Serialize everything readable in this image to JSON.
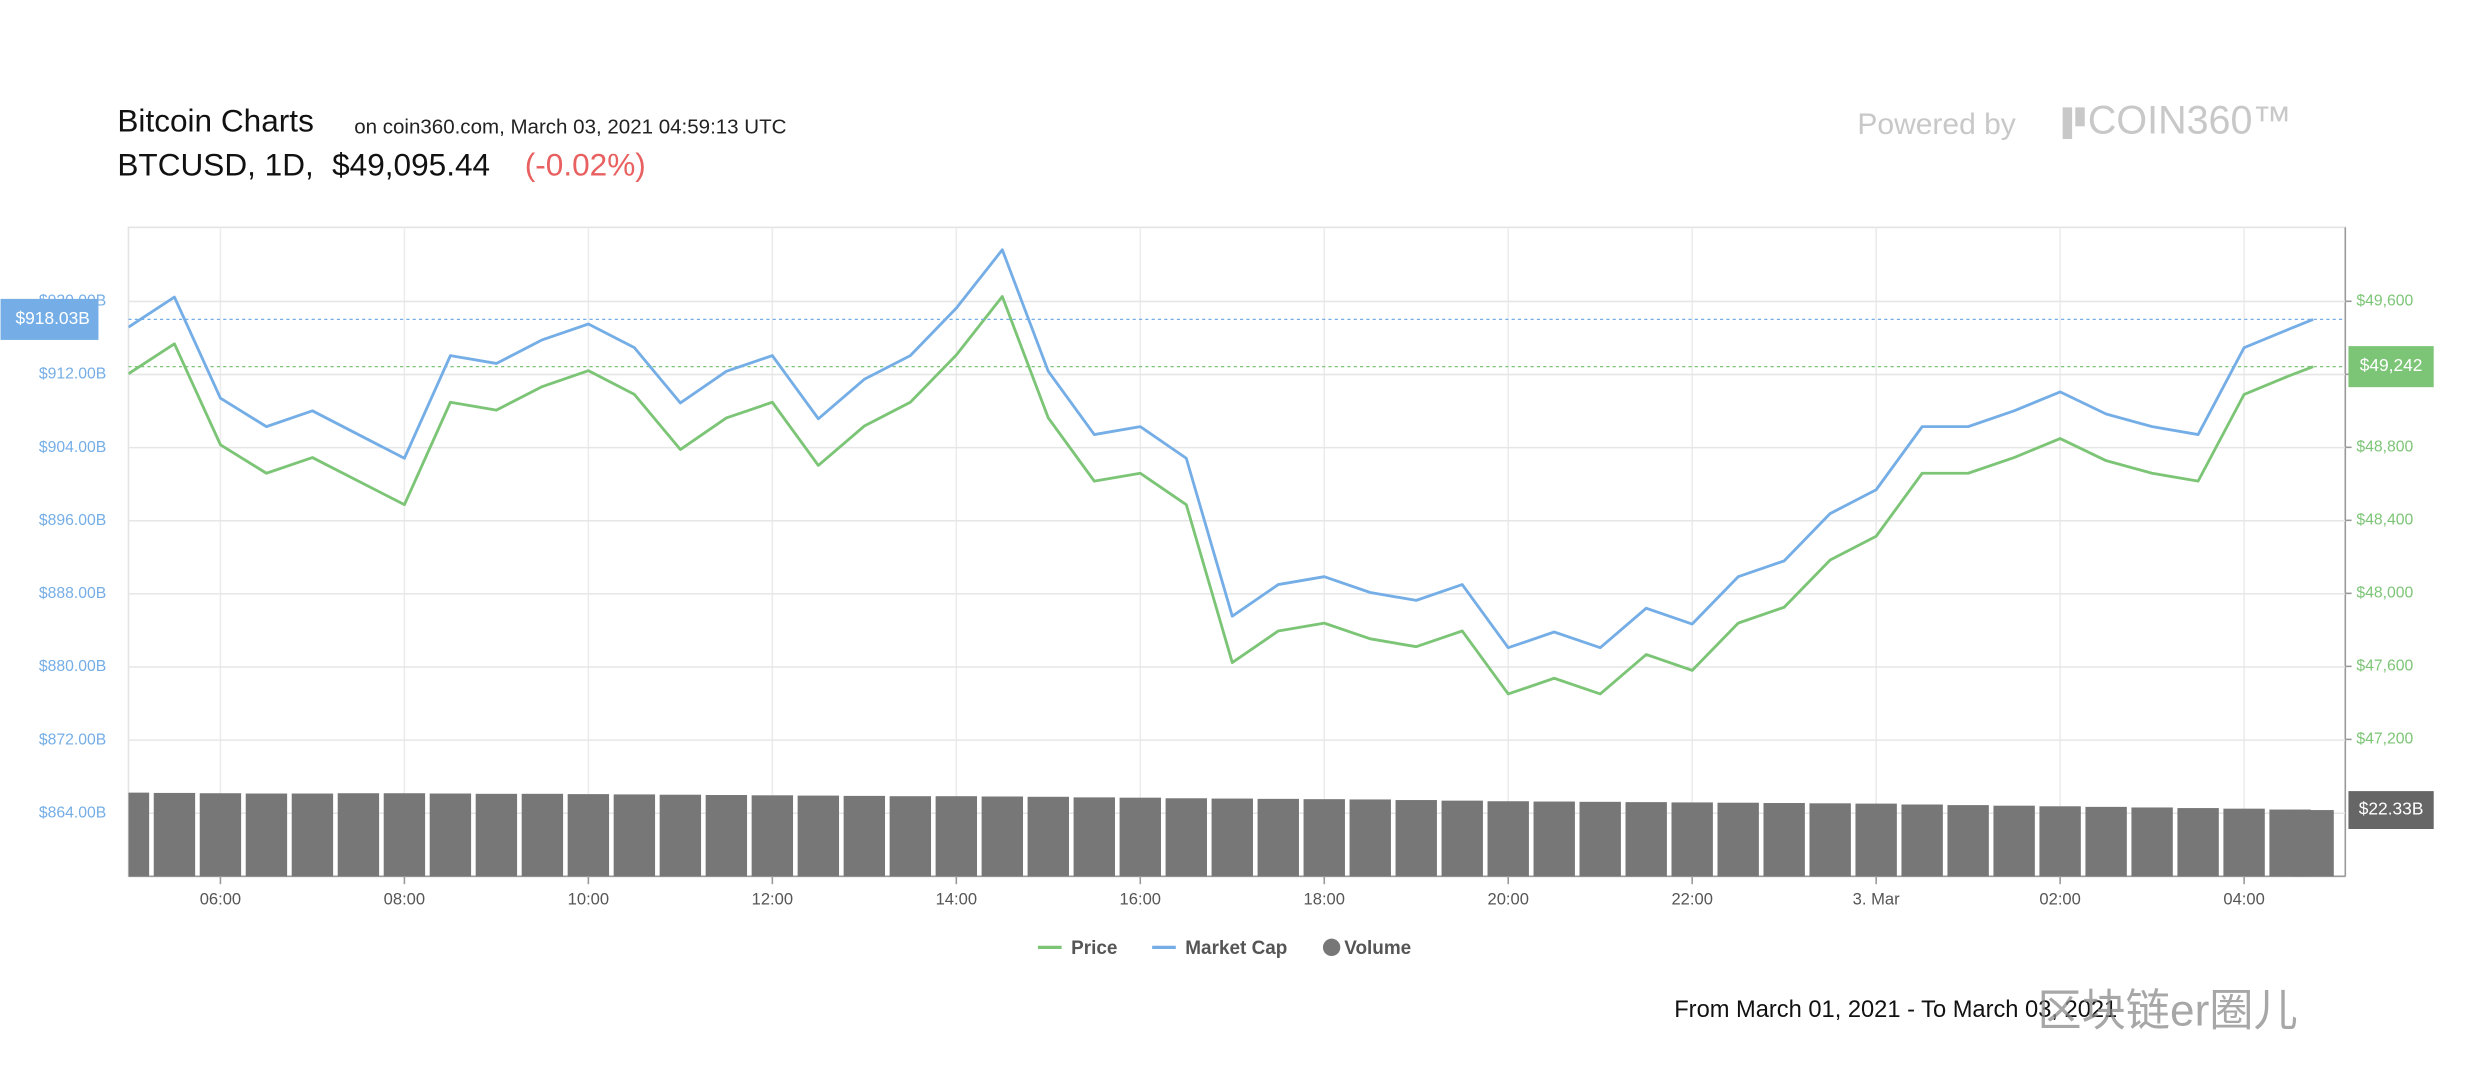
{
  "header": {
    "title": "Bitcoin Charts",
    "source": "on coin360.com, March 03, 2021 04:59:13 UTC",
    "symbol": "BTCUSD, 1D,",
    "price": "$49,095.44",
    "change": "(-0.02%)",
    "powered_by": "Powered by",
    "brand": "COIN360™"
  },
  "chart_data": {
    "type": "line",
    "x": [
      5,
      5.5,
      6,
      6.5,
      7,
      7.5,
      8,
      8.5,
      9,
      9.5,
      10,
      10.5,
      11,
      11.5,
      12,
      12.5,
      13,
      13.5,
      14,
      14.5,
      15,
      15.5,
      16,
      16.5,
      17,
      17.5,
      18,
      18.5,
      19,
      19.5,
      20,
      20.5,
      21,
      21.5,
      22,
      22.5,
      23,
      23.5,
      24,
      24.5,
      25,
      25.5,
      26,
      26.5,
      27,
      27.5,
      28,
      28.5,
      28.75
    ],
    "xlim": [
      5,
      29.1
    ],
    "xticks": [
      {
        "value": 6,
        "label": "06:00"
      },
      {
        "value": 8,
        "label": "08:00"
      },
      {
        "value": 10,
        "label": "10:00"
      },
      {
        "value": 12,
        "label": "12:00"
      },
      {
        "value": 14,
        "label": "14:00"
      },
      {
        "value": 16,
        "label": "16:00"
      },
      {
        "value": 18,
        "label": "18:00"
      },
      {
        "value": 20,
        "label": "20:00"
      },
      {
        "value": 22,
        "label": "22:00"
      },
      {
        "value": 24,
        "label": "3. Mar"
      },
      {
        "value": 26,
        "label": "02:00"
      },
      {
        "value": 28,
        "label": "04:00"
      }
    ],
    "ylim": [
      857.1,
      928.1
    ],
    "yticks": [
      {
        "value": 864,
        "label": "$864.00B"
      },
      {
        "value": 872,
        "label": "$872.00B"
      },
      {
        "value": 880,
        "label": "$880.00B"
      },
      {
        "value": 888,
        "label": "$888.00B"
      },
      {
        "value": 896,
        "label": "$896.00B"
      },
      {
        "value": 904,
        "label": "$904.00B"
      },
      {
        "value": 912,
        "label": "$912.00B"
      },
      {
        "value": 920,
        "label": "$920.00B"
      }
    ],
    "y2lim": [
      46450,
      50005
    ],
    "y2ticks": [
      {
        "value": 47200,
        "label": "$47,200"
      },
      {
        "value": 47600,
        "label": "$47,600"
      },
      {
        "value": 48000,
        "label": "$48,000"
      },
      {
        "value": 48400,
        "label": "$48,400"
      },
      {
        "value": 48800,
        "label": "$48,800"
      },
      {
        "value": 49200,
        "label": "$49,200"
      },
      {
        "value": 49600,
        "label": "$49,600"
      }
    ],
    "grid": true,
    "legend": "bottom",
    "series": [
      {
        "name": "Price",
        "color": "#7cc576",
        "axis": "y2",
        "values": [
          49203,
          49367,
          48814,
          48658,
          48744,
          48615,
          48486,
          49047,
          49004,
          49133,
          49220,
          49090,
          48788,
          48961,
          49047,
          48701,
          48917,
          49047,
          49306,
          49626,
          48961,
          48615,
          48658,
          48486,
          47621,
          47794,
          47837,
          47751,
          47708,
          47794,
          47449,
          47535,
          47449,
          47665,
          47578,
          47837,
          47924,
          48183,
          48313,
          48658,
          48658,
          48744,
          48848,
          48727,
          48658,
          48615,
          49090,
          49194,
          49242
        ],
        "value_labels": [
          null,
          null,
          null,
          null,
          null,
          null,
          null,
          null,
          null,
          null,
          null,
          null,
          null,
          null,
          null,
          null,
          null,
          null,
          null,
          null,
          null,
          null,
          null,
          null,
          null,
          null,
          null,
          null,
          null,
          null,
          null,
          null,
          null,
          null,
          null,
          null,
          null,
          null,
          null,
          null,
          null,
          null,
          null,
          null,
          null,
          null,
          null,
          null,
          "$49,242"
        ]
      },
      {
        "name": "Market Cap",
        "color": "#75aee6",
        "axis": "y",
        "values": [
          917.18,
          920.47,
          909.41,
          906.3,
          908.03,
          905.43,
          902.84,
          914.07,
          913.21,
          915.8,
          917.53,
          914.94,
          908.89,
          912.35,
          914.07,
          907.16,
          911.48,
          914.07,
          919.26,
          925.65,
          912.35,
          905.43,
          906.3,
          902.84,
          885.56,
          889.02,
          889.88,
          888.15,
          887.29,
          889.02,
          882.11,
          883.83,
          882.11,
          886.43,
          884.7,
          889.88,
          891.61,
          896.79,
          899.39,
          906.3,
          906.3,
          908.03,
          910.1,
          907.68,
          906.3,
          905.43,
          914.94,
          917.01,
          918.03
        ],
        "value_labels": [
          null,
          null,
          null,
          null,
          null,
          null,
          null,
          null,
          null,
          null,
          null,
          null,
          null,
          null,
          null,
          null,
          null,
          null,
          null,
          null,
          null,
          null,
          null,
          null,
          null,
          null,
          null,
          null,
          null,
          null,
          null,
          null,
          null,
          null,
          null,
          null,
          null,
          null,
          null,
          null,
          null,
          null,
          null,
          null,
          null,
          null,
          null,
          null,
          "$918.03B"
        ]
      },
      {
        "name": "Volume",
        "color": "#777777",
        "type": "bar",
        "values": [
          28.2,
          28.1,
          28.0,
          27.9,
          27.9,
          28.0,
          28.0,
          27.9,
          27.8,
          27.8,
          27.7,
          27.6,
          27.5,
          27.4,
          27.3,
          27.2,
          27.1,
          27.0,
          27.0,
          26.9,
          26.8,
          26.6,
          26.5,
          26.3,
          26.2,
          26.1,
          26.0,
          25.9,
          25.7,
          25.5,
          25.3,
          25.2,
          25.1,
          25.0,
          24.9,
          24.8,
          24.7,
          24.6,
          24.5,
          24.2,
          24.0,
          23.8,
          23.6,
          23.4,
          23.2,
          23.0,
          22.8,
          22.5,
          22.33
        ],
        "value_labels": [
          null,
          null,
          null,
          null,
          null,
          null,
          null,
          null,
          null,
          null,
          null,
          null,
          null,
          null,
          null,
          null,
          null,
          null,
          null,
          null,
          null,
          null,
          null,
          null,
          null,
          null,
          null,
          null,
          null,
          null,
          null,
          null,
          null,
          null,
          null,
          null,
          null,
          null,
          null,
          null,
          null,
          null,
          null,
          null,
          null,
          null,
          null,
          null,
          "$22.33B"
        ]
      }
    ]
  },
  "footer": {
    "range": "From March 01, 2021 - To March 03, 2021",
    "watermark": "区块链er圈儿"
  }
}
